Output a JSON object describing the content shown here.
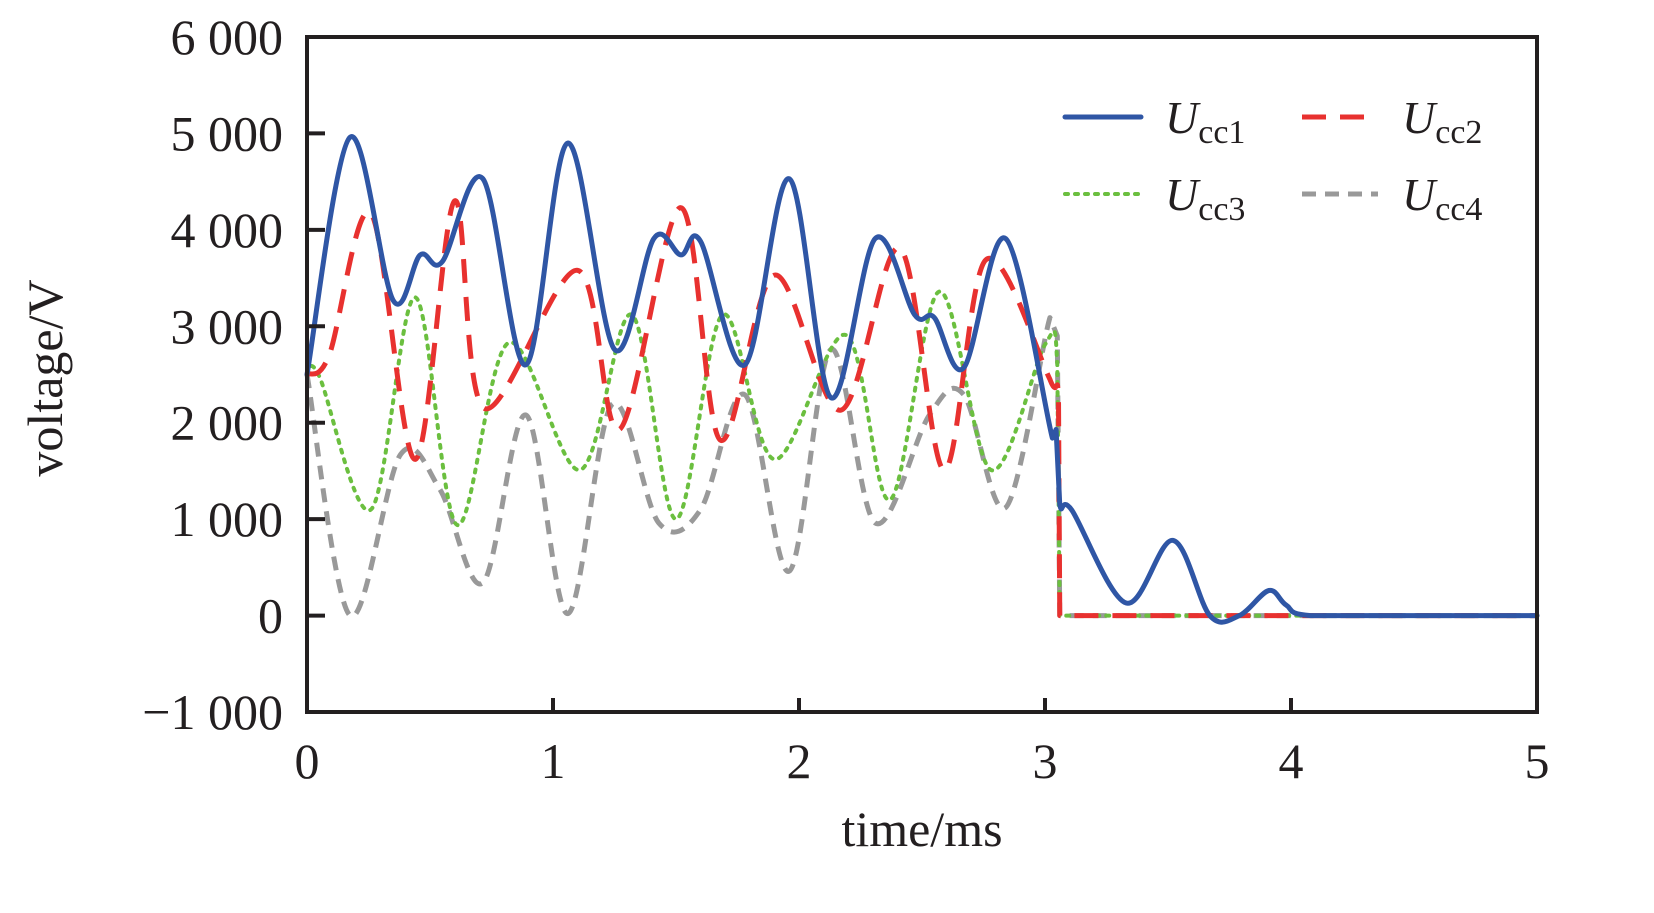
{
  "chart_data": {
    "type": "line",
    "title": "",
    "xlabel": "time/ms",
    "ylabel": "voltage/V",
    "xlim": [
      0,
      5
    ],
    "ylim": [
      -1000,
      6000
    ],
    "grid": false,
    "legend_position": "top-right",
    "x_ticks": [
      0,
      1,
      2,
      3,
      4,
      5
    ],
    "x_tick_labels": [
      "0",
      "1",
      "2",
      "3",
      "4",
      "5"
    ],
    "y_ticks": [
      6000,
      5000,
      4000,
      3000,
      2000,
      1000,
      0,
      -1000
    ],
    "y_tick_labels": [
      "6 000",
      "5 000",
      "4 000",
      "3 000",
      "2 000",
      "1 000",
      "0",
      "−1 000"
    ],
    "series": [
      {
        "name": "Ucc1",
        "symbol": "U",
        "subscript": "cc1",
        "color": "#2f56a5",
        "style": "solid",
        "points": [
          [
            0,
            2500
          ],
          [
            0.175,
            4960
          ],
          [
            0.35,
            3270
          ],
          [
            0.46,
            3740
          ],
          [
            0.55,
            3670
          ],
          [
            0.715,
            4530
          ],
          [
            0.89,
            2600
          ],
          [
            1.06,
            4900
          ],
          [
            1.25,
            2760
          ],
          [
            1.41,
            3910
          ],
          [
            1.52,
            3740
          ],
          [
            1.6,
            3880
          ],
          [
            1.78,
            2600
          ],
          [
            1.96,
            4530
          ],
          [
            2.13,
            2260
          ],
          [
            2.31,
            3910
          ],
          [
            2.47,
            3120
          ],
          [
            2.55,
            3090
          ],
          [
            2.67,
            2570
          ],
          [
            2.84,
            3910
          ],
          [
            3.03,
            1840
          ],
          [
            3.045,
            1930
          ],
          [
            3.06,
            1150
          ],
          [
            3.11,
            1090
          ],
          [
            3.33,
            130
          ],
          [
            3.52,
            780
          ],
          [
            3.67,
            0
          ],
          [
            3.79,
            0
          ],
          [
            3.91,
            260
          ],
          [
            3.98,
            110
          ],
          [
            4.08,
            0
          ],
          [
            5,
            0
          ]
        ]
      },
      {
        "name": "Ucc2",
        "symbol": "U",
        "subscript": "cc2",
        "color": "#e8312f",
        "style": "dashed",
        "points": [
          [
            0,
            2500
          ],
          [
            0.09,
            2700
          ],
          [
            0.26,
            4170
          ],
          [
            0.44,
            1620
          ],
          [
            0.6,
            4300
          ],
          [
            0.72,
            2150
          ],
          [
            1.1,
            3580
          ],
          [
            1.27,
            1930
          ],
          [
            1.52,
            4230
          ],
          [
            1.68,
            1820
          ],
          [
            1.9,
            3530
          ],
          [
            2.17,
            2130
          ],
          [
            2.41,
            3810
          ],
          [
            2.59,
            1510
          ],
          [
            2.76,
            3690
          ],
          [
            3.02,
            2450
          ],
          [
            3.055,
            2200
          ],
          [
            3.06,
            0
          ],
          [
            5,
            0
          ]
        ]
      },
      {
        "name": "Ucc3",
        "symbol": "U",
        "subscript": "cc3",
        "color": "#6bbf3f",
        "style": "dotted",
        "points": [
          [
            0,
            2500
          ],
          [
            0.05,
            2480
          ],
          [
            0.26,
            1100
          ],
          [
            0.44,
            3300
          ],
          [
            0.61,
            940
          ],
          [
            0.82,
            2830
          ],
          [
            1.11,
            1510
          ],
          [
            1.32,
            3120
          ],
          [
            1.5,
            1000
          ],
          [
            1.69,
            3120
          ],
          [
            1.9,
            1620
          ],
          [
            2.19,
            2910
          ],
          [
            2.37,
            1200
          ],
          [
            2.57,
            3360
          ],
          [
            2.78,
            1510
          ],
          [
            3.0,
            2810
          ],
          [
            3.05,
            2600
          ],
          [
            3.06,
            0
          ],
          [
            5,
            0
          ]
        ]
      },
      {
        "name": "Ucc4",
        "symbol": "U",
        "subscript": "cc4",
        "color": "#999999",
        "style": "short-dashed",
        "points": [
          [
            0,
            2500
          ],
          [
            0.175,
            0
          ],
          [
            0.38,
            1670
          ],
          [
            0.54,
            1310
          ],
          [
            0.715,
            340
          ],
          [
            0.89,
            2080
          ],
          [
            1.06,
            20
          ],
          [
            1.24,
            2190
          ],
          [
            1.43,
            960
          ],
          [
            1.6,
            1100
          ],
          [
            1.78,
            2290
          ],
          [
            1.96,
            460
          ],
          [
            2.13,
            2760
          ],
          [
            2.31,
            960
          ],
          [
            2.53,
            2080
          ],
          [
            2.67,
            2290
          ],
          [
            2.84,
            1120
          ],
          [
            3.02,
            3090
          ],
          [
            3.05,
            2900
          ],
          [
            3.06,
            0
          ],
          [
            5,
            0
          ]
        ]
      }
    ]
  }
}
